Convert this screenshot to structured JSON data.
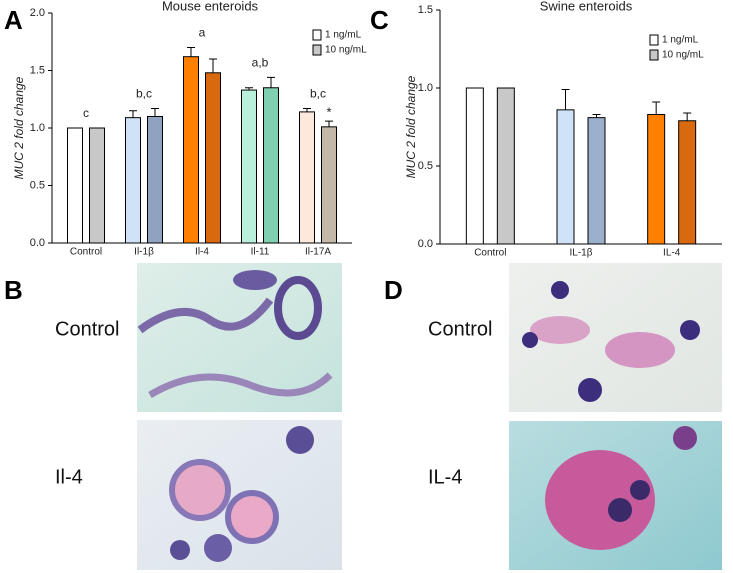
{
  "panel_labels": [
    "A",
    "B",
    "C",
    "D"
  ],
  "image_labels": {
    "B": [
      "Control",
      "Il-4"
    ],
    "D": [
      "Control",
      "IL-4"
    ]
  },
  "chart_data": [
    {
      "type": "bar",
      "title": "Mouse enteroids",
      "y_label": "MUC 2 fold change",
      "categories": [
        "Control",
        "Il-1β",
        "Il-4",
        "Il-11",
        "Il-17A"
      ],
      "group_labels": [
        "c",
        "b,c",
        "a",
        "a,b",
        "b,c"
      ],
      "series": [
        {
          "name": "1 ng/mL",
          "color": "#ffffff",
          "bar_colors": [
            "#ffffff",
            "#cfe2f7",
            "#ff8000",
            "#b8f0dc",
            "#fde8dc"
          ],
          "values": [
            1.0,
            1.09,
            1.62,
            1.33,
            1.14
          ],
          "errors": [
            0,
            0.06,
            0.08,
            0.02,
            0.03
          ],
          "annotations": [
            null,
            null,
            null,
            null,
            null
          ]
        },
        {
          "name": "10 ng/mL",
          "color": "#c8c8c8",
          "bar_colors": [
            "#c8c8c8",
            "#8fa3c0",
            "#d9690f",
            "#7fcfb0",
            "#c4b8a8"
          ],
          "values": [
            1.0,
            1.1,
            1.48,
            1.35,
            1.01
          ],
          "errors": [
            0,
            0.07,
            0.12,
            0.09,
            0.05
          ],
          "annotations": [
            null,
            null,
            null,
            null,
            "*"
          ]
        }
      ],
      "ylim": [
        0,
        2.0
      ],
      "yticks": [
        {
          "value": 0,
          "label": "0.0"
        },
        {
          "value": 0.5,
          "label": "0.5"
        },
        {
          "value": 1,
          "label": "1.0"
        },
        {
          "value": 1.5,
          "label": "1.5"
        },
        {
          "value": 2,
          "label": "2.0"
        }
      ]
    },
    {
      "type": "bar",
      "title": "Swine enteroids",
      "y_label": "MUC 2 fold change",
      "categories": [
        "Control",
        "IL-1β",
        "IL-4"
      ],
      "series": [
        {
          "name": "1 ng/mL",
          "color": "#ffffff",
          "bar_colors": [
            "#ffffff",
            "#cfe2f7",
            "#ff8000"
          ],
          "values": [
            1.0,
            0.86,
            0.83
          ],
          "errors": [
            0,
            0.13,
            0.08
          ]
        },
        {
          "name": "10 ng/mL",
          "color": "#c8c8c8",
          "bar_colors": [
            "#c8c8c8",
            "#9bb0cc",
            "#d9690f"
          ],
          "values": [
            1.0,
            0.81,
            0.79
          ],
          "errors": [
            0,
            0.02,
            0.05
          ]
        }
      ],
      "ylim": [
        0,
        1.5
      ],
      "yticks": [
        {
          "value": 0,
          "label": "0.0"
        },
        {
          "value": 0.5,
          "label": "0.5"
        },
        {
          "value": 1,
          "label": "1.0"
        },
        {
          "value": 1.5,
          "label": "1.5"
        }
      ]
    }
  ]
}
